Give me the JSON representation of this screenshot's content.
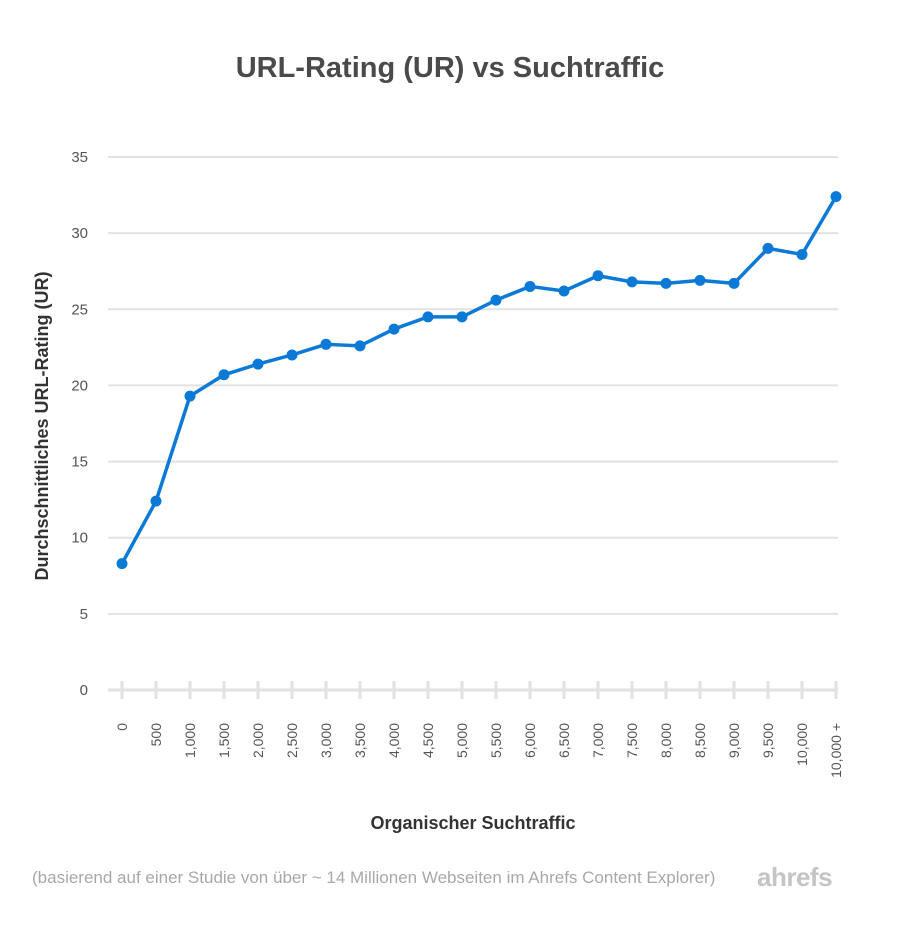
{
  "chart_data": {
    "type": "line",
    "title": "URL-Rating (UR) vs Suchtraffic",
    "xlabel": "Organischer Suchtraffic",
    "ylabel": "Durchschnittliches URL-Rating (UR)",
    "ylim": [
      0,
      35
    ],
    "yticks": [
      "0",
      "5",
      "10",
      "15",
      "20",
      "25",
      "30",
      "35"
    ],
    "grid": true,
    "categories": [
      "0",
      "500",
      "1,000",
      "1,500",
      "2,000",
      "2,500",
      "3,000",
      "3,500",
      "4,000",
      "4,500",
      "5,000",
      "5,500",
      "6,000",
      "6,500",
      "7,000",
      "7,500",
      "8,000",
      "8,500",
      "9,000",
      "9,500",
      "10,000",
      "10,000 +"
    ],
    "series": [
      {
        "name": "Durchschnittliches URL-Rating",
        "color": "#0b7ad6",
        "values": [
          8.3,
          12.4,
          19.3,
          20.7,
          21.4,
          22.0,
          22.7,
          22.6,
          23.7,
          24.5,
          24.5,
          25.6,
          26.5,
          26.2,
          27.2,
          26.8,
          26.7,
          26.9,
          26.7,
          29.0,
          28.6,
          32.4
        ]
      }
    ]
  },
  "footnote": "(basierend auf einer Studie von über ~ 14 Millionen Webseiten im Ahrefs Content Explorer)",
  "brand": "ahrefs"
}
